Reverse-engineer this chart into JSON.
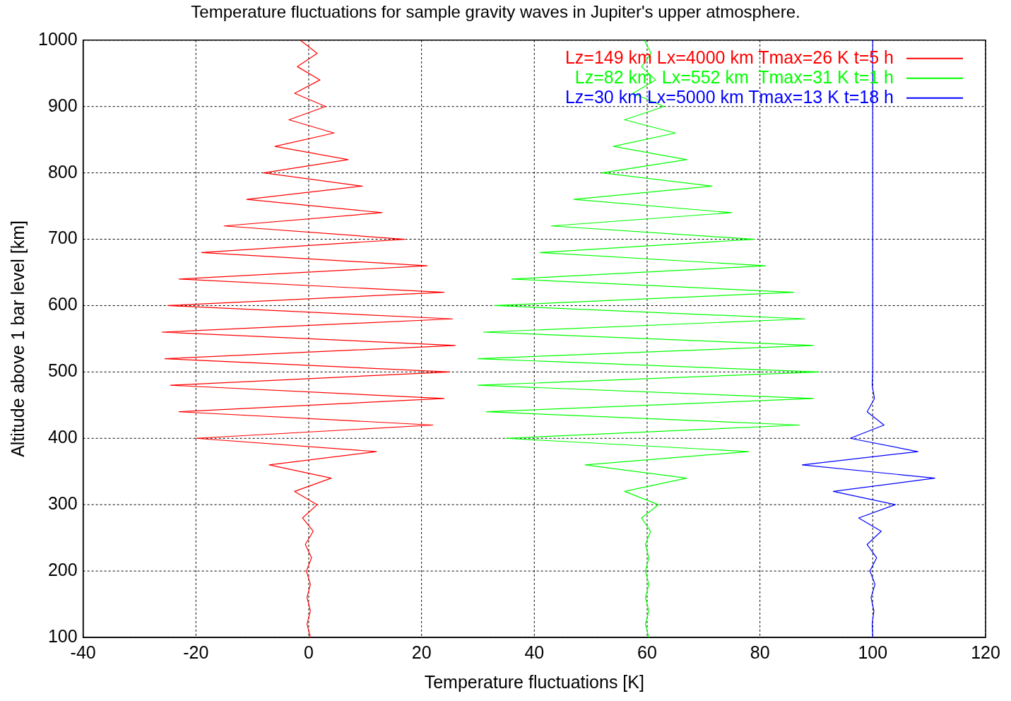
{
  "chart_data": {
    "type": "line",
    "title": "Temperature fluctuations for sample gravity waves in Jupiter's upper atmosphere.",
    "xlabel": "Temperature fluctuations [K]",
    "ylabel": "Altitude above 1 bar level [km]",
    "xlim": [
      -40,
      120
    ],
    "xticks": [
      -40,
      -20,
      0,
      20,
      40,
      60,
      80,
      100,
      120
    ],
    "ylim": [
      100,
      1000
    ],
    "yticks": [
      100,
      200,
      300,
      400,
      500,
      600,
      700,
      800,
      900,
      1000
    ],
    "grid": true,
    "legend": "top right",
    "marker": "none",
    "line_style": "solid",
    "series": [
      {
        "name": "Lz=149 km Lx=4000 km Tmax=26 K t=5 h",
        "color": "#ff0000",
        "x": [
          0.3,
          -0.3,
          0.3,
          -0.3,
          0.3,
          -0.4,
          0.5,
          -0.6,
          0.8,
          -1.1,
          1.5,
          -2.5,
          4,
          -7,
          12,
          -20,
          22,
          -23,
          24,
          -24.5,
          25,
          -25.5,
          26,
          -26,
          25.5,
          -25,
          24,
          -23,
          21,
          -19,
          17,
          -15,
          13,
          -11,
          9.5,
          -8,
          7,
          -6,
          4.5,
          -3.5,
          3,
          -2.5,
          2,
          -2,
          1.5,
          -1.5
        ],
        "values": [
          100,
          120,
          140,
          160,
          180,
          200,
          220,
          240,
          260,
          280,
          300,
          320,
          340,
          360,
          380,
          400,
          420,
          440,
          460,
          480,
          500,
          520,
          540,
          560,
          580,
          600,
          620,
          640,
          660,
          680,
          700,
          720,
          740,
          760,
          780,
          800,
          820,
          840,
          860,
          880,
          900,
          920,
          940,
          960,
          980,
          1000
        ]
      },
      {
        "name": "Lz=82 km  Lx=552 km  Tmax=31 K t=1 h",
        "color": "#00ff00",
        "x": [
          60.3,
          59.7,
          60.3,
          59.7,
          60.3,
          59.7,
          60.3,
          59.7,
          60.6,
          59,
          62,
          56,
          67,
          49,
          78,
          35,
          87,
          31.5,
          89.5,
          30,
          90.5,
          30,
          89.5,
          31,
          88,
          33,
          86,
          36,
          81,
          41,
          79,
          43,
          75,
          47,
          71.5,
          52,
          67,
          54,
          65,
          56,
          63,
          57.5,
          61.5,
          59,
          60.7,
          59.5
        ],
        "values": [
          100,
          120,
          140,
          160,
          180,
          200,
          220,
          240,
          260,
          280,
          300,
          320,
          340,
          360,
          380,
          400,
          420,
          440,
          460,
          480,
          500,
          520,
          540,
          560,
          580,
          600,
          620,
          640,
          660,
          680,
          700,
          720,
          740,
          760,
          780,
          800,
          820,
          840,
          860,
          880,
          900,
          920,
          940,
          960,
          980,
          1000
        ]
      },
      {
        "name": "Lz=30 km Lx=5000 km Tmax=13 K t=18 h",
        "color": "#0000ff",
        "x": [
          100,
          99.9,
          100.2,
          99.7,
          100.4,
          99.5,
          100.7,
          99,
          101.5,
          97.5,
          104,
          93,
          111,
          87.5,
          108,
          96,
          102,
          99,
          100.3,
          99.9,
          100,
          100
        ],
        "values": [
          100,
          120,
          140,
          160,
          180,
          200,
          220,
          240,
          260,
          280,
          300,
          320,
          340,
          360,
          380,
          400,
          420,
          440,
          460,
          480,
          500,
          1000
        ]
      }
    ]
  }
}
